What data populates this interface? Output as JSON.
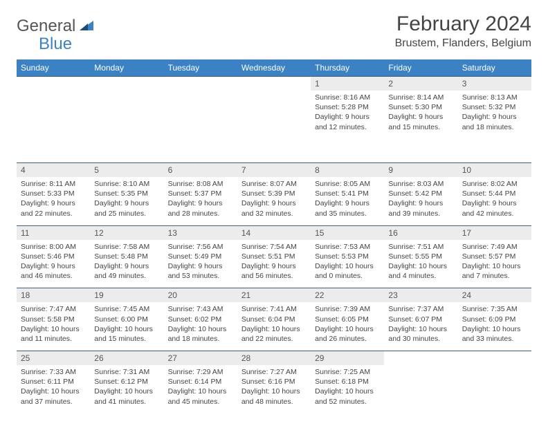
{
  "brand": {
    "name1": "General",
    "name2": "Blue"
  },
  "title": "February 2024",
  "location": "Brustem, Flanders, Belgium",
  "colors": {
    "header_bg": "#3b82c4",
    "header_text": "#ffffff",
    "daynum_bg": "#ececec",
    "border": "#3b5f7a",
    "text": "#444444",
    "brand_gray": "#555555",
    "brand_blue": "#3b82c4"
  },
  "day_names": [
    "Sunday",
    "Monday",
    "Tuesday",
    "Wednesday",
    "Thursday",
    "Friday",
    "Saturday"
  ],
  "weeks": [
    [
      null,
      null,
      null,
      null,
      {
        "n": "1",
        "sr": "8:16 AM",
        "ss": "5:28 PM",
        "dl": "9 hours and 12 minutes."
      },
      {
        "n": "2",
        "sr": "8:14 AM",
        "ss": "5:30 PM",
        "dl": "9 hours and 15 minutes."
      },
      {
        "n": "3",
        "sr": "8:13 AM",
        "ss": "5:32 PM",
        "dl": "9 hours and 18 minutes."
      }
    ],
    [
      {
        "n": "4",
        "sr": "8:11 AM",
        "ss": "5:33 PM",
        "dl": "9 hours and 22 minutes."
      },
      {
        "n": "5",
        "sr": "8:10 AM",
        "ss": "5:35 PM",
        "dl": "9 hours and 25 minutes."
      },
      {
        "n": "6",
        "sr": "8:08 AM",
        "ss": "5:37 PM",
        "dl": "9 hours and 28 minutes."
      },
      {
        "n": "7",
        "sr": "8:07 AM",
        "ss": "5:39 PM",
        "dl": "9 hours and 32 minutes."
      },
      {
        "n": "8",
        "sr": "8:05 AM",
        "ss": "5:41 PM",
        "dl": "9 hours and 35 minutes."
      },
      {
        "n": "9",
        "sr": "8:03 AM",
        "ss": "5:42 PM",
        "dl": "9 hours and 39 minutes."
      },
      {
        "n": "10",
        "sr": "8:02 AM",
        "ss": "5:44 PM",
        "dl": "9 hours and 42 minutes."
      }
    ],
    [
      {
        "n": "11",
        "sr": "8:00 AM",
        "ss": "5:46 PM",
        "dl": "9 hours and 46 minutes."
      },
      {
        "n": "12",
        "sr": "7:58 AM",
        "ss": "5:48 PM",
        "dl": "9 hours and 49 minutes."
      },
      {
        "n": "13",
        "sr": "7:56 AM",
        "ss": "5:49 PM",
        "dl": "9 hours and 53 minutes."
      },
      {
        "n": "14",
        "sr": "7:54 AM",
        "ss": "5:51 PM",
        "dl": "9 hours and 56 minutes."
      },
      {
        "n": "15",
        "sr": "7:53 AM",
        "ss": "5:53 PM",
        "dl": "10 hours and 0 minutes."
      },
      {
        "n": "16",
        "sr": "7:51 AM",
        "ss": "5:55 PM",
        "dl": "10 hours and 4 minutes."
      },
      {
        "n": "17",
        "sr": "7:49 AM",
        "ss": "5:57 PM",
        "dl": "10 hours and 7 minutes."
      }
    ],
    [
      {
        "n": "18",
        "sr": "7:47 AM",
        "ss": "5:58 PM",
        "dl": "10 hours and 11 minutes."
      },
      {
        "n": "19",
        "sr": "7:45 AM",
        "ss": "6:00 PM",
        "dl": "10 hours and 15 minutes."
      },
      {
        "n": "20",
        "sr": "7:43 AM",
        "ss": "6:02 PM",
        "dl": "10 hours and 18 minutes."
      },
      {
        "n": "21",
        "sr": "7:41 AM",
        "ss": "6:04 PM",
        "dl": "10 hours and 22 minutes."
      },
      {
        "n": "22",
        "sr": "7:39 AM",
        "ss": "6:05 PM",
        "dl": "10 hours and 26 minutes."
      },
      {
        "n": "23",
        "sr": "7:37 AM",
        "ss": "6:07 PM",
        "dl": "10 hours and 30 minutes."
      },
      {
        "n": "24",
        "sr": "7:35 AM",
        "ss": "6:09 PM",
        "dl": "10 hours and 33 minutes."
      }
    ],
    [
      {
        "n": "25",
        "sr": "7:33 AM",
        "ss": "6:11 PM",
        "dl": "10 hours and 37 minutes."
      },
      {
        "n": "26",
        "sr": "7:31 AM",
        "ss": "6:12 PM",
        "dl": "10 hours and 41 minutes."
      },
      {
        "n": "27",
        "sr": "7:29 AM",
        "ss": "6:14 PM",
        "dl": "10 hours and 45 minutes."
      },
      {
        "n": "28",
        "sr": "7:27 AM",
        "ss": "6:16 PM",
        "dl": "10 hours and 48 minutes."
      },
      {
        "n": "29",
        "sr": "7:25 AM",
        "ss": "6:18 PM",
        "dl": "10 hours and 52 minutes."
      },
      null,
      null
    ]
  ],
  "labels": {
    "sunrise": "Sunrise:",
    "sunset": "Sunset:",
    "daylight": "Daylight:"
  }
}
